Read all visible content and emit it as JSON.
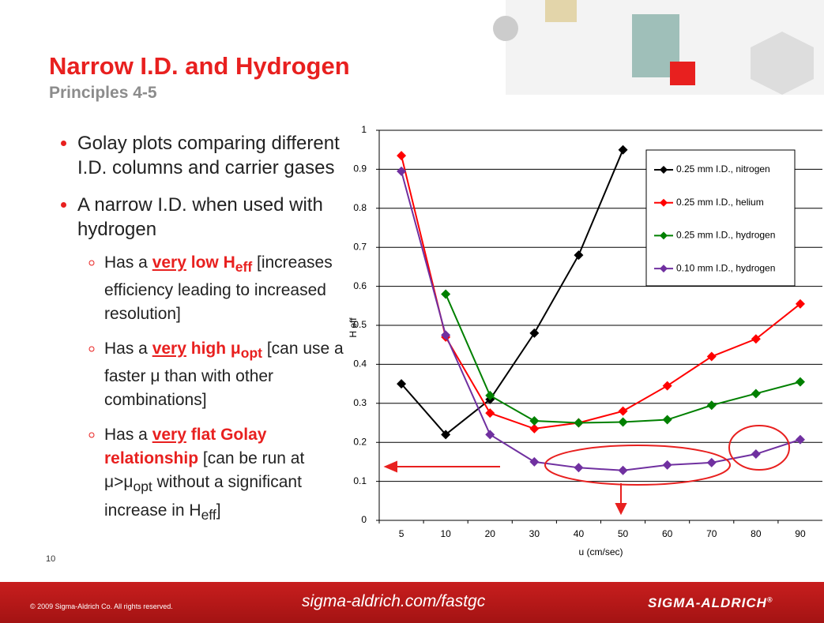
{
  "header": {
    "title": "Narrow I.D. and Hydrogen",
    "subtitle": "Principles 4-5"
  },
  "bullets": [
    {
      "text": "Golay plots comparing different I.D. columns and carrier gases"
    },
    {
      "text": "A narrow I.D. when used with hydrogen",
      "subbullets": [
        {
          "segments": [
            "Has a ",
            "very",
            " low H",
            "eff",
            " [increases efficiency leading to increased resolution]"
          ]
        },
        {
          "segments": [
            "Has a ",
            "very",
            " high μ",
            "opt",
            " [can use a faster μ than with other combinations]"
          ]
        },
        {
          "segments": [
            "Has a ",
            "very",
            " flat Golay relationship",
            " [can be run at μ>μ",
            "opt",
            " without a significant increase in H",
            "eff",
            "]"
          ]
        }
      ]
    }
  ],
  "page_number": "10",
  "footer": {
    "copyright": "© 2009 Sigma-Aldrich Co. All rights reserved.",
    "url": "sigma-aldrich.com/fastgc",
    "brand": "SIGMA-ALDRICH",
    "brand_mark": "®"
  },
  "chart_data": {
    "type": "line",
    "categories": [
      "5",
      "10",
      "20",
      "30",
      "40",
      "50",
      "60",
      "70",
      "80",
      "90"
    ],
    "x_label": "u (cm/sec)",
    "y_label": "H eff",
    "ylim": [
      0,
      1
    ],
    "yticks": [
      0,
      0.1,
      0.2,
      0.3,
      0.4,
      0.5,
      0.6,
      0.7,
      0.8,
      0.9,
      1
    ],
    "grid": true,
    "series": [
      {
        "name": "0.25 mm I.D., nitrogen",
        "color": "#000000",
        "values": [
          0.35,
          0.22,
          0.31,
          0.48,
          0.68,
          0.95,
          null,
          null,
          null,
          null
        ]
      },
      {
        "name": "0.25 mm I.D., helium",
        "color": "#ff0000",
        "values": [
          0.935,
          0.47,
          0.275,
          0.235,
          0.25,
          0.28,
          0.345,
          0.42,
          0.465,
          0.555
        ]
      },
      {
        "name": "0.25 mm I.D., hydrogen",
        "color": "#008000",
        "values": [
          null,
          0.58,
          0.32,
          0.255,
          0.25,
          0.252,
          0.258,
          0.295,
          0.325,
          0.355
        ]
      },
      {
        "name": "0.10 mm I.D., hydrogen",
        "color": "#7030a0",
        "values": [
          0.895,
          0.475,
          0.22,
          0.15,
          0.135,
          0.128,
          0.142,
          0.148,
          0.17,
          0.207
        ]
      }
    ]
  }
}
